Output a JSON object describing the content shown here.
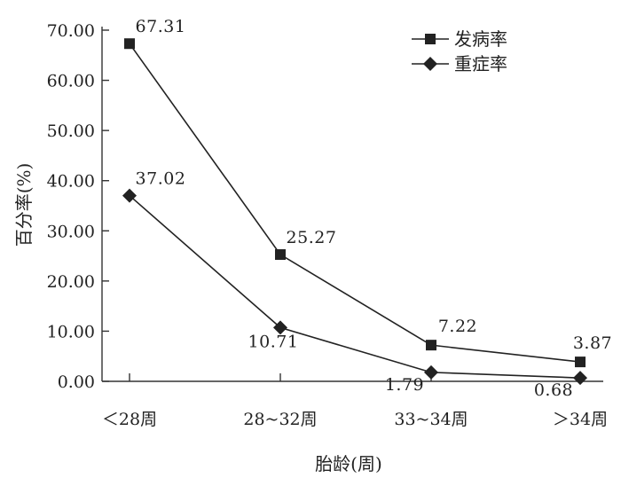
{
  "chart_data": {
    "type": "line",
    "title": "",
    "xlabel": "胎龄(周)",
    "ylabel": "百分率(%)",
    "categories": [
      "＜28周",
      "28~32周",
      "33~34周",
      "＞34周"
    ],
    "yticks": [
      "0.00",
      "10.00",
      "20.00",
      "30.00",
      "40.00",
      "50.00",
      "60.00",
      "70.00"
    ],
    "ylim": [
      0,
      70
    ],
    "grid": false,
    "legend_position": "top-right",
    "series": [
      {
        "name": "发病率",
        "marker": "square",
        "values": [
          67.31,
          25.27,
          7.22,
          3.87
        ],
        "labels": [
          "67.31",
          "25.27",
          "7.22",
          "3.87"
        ]
      },
      {
        "name": "重症率",
        "marker": "diamond",
        "values": [
          37.02,
          10.71,
          1.79,
          0.68
        ],
        "labels": [
          "37.02",
          "10.71",
          "1.79",
          "0.68"
        ]
      }
    ]
  },
  "colors": {
    "line": "#222222",
    "axis": "#333333"
  }
}
